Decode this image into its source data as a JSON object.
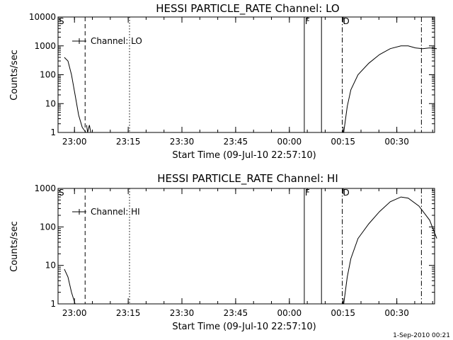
{
  "footer": {
    "timestamp": "1-Sep-2010 00:21"
  },
  "chart_data": [
    {
      "type": "line",
      "title": "HESSI PARTICLE_RATE Channel: LO",
      "xlabel": "Start Time (09-Jul-10 22:57:10)",
      "ylabel": "Counts/sec",
      "legend": "Channel: LO",
      "scale_y": "log",
      "ylim": [
        1,
        10000
      ],
      "y_ticks": [
        "1",
        "10",
        "100",
        "1000",
        "10000"
      ],
      "x_ticks": [
        "23:00",
        "23:15",
        "23:30",
        "23:45",
        "00:00",
        "00:15",
        "00:30"
      ],
      "markers": [
        {
          "label": "",
          "style": "dashed"
        },
        {
          "label": "",
          "style": "dotted"
        },
        {
          "label": "F",
          "style": "solid"
        },
        {
          "label": "",
          "style": "solid"
        },
        {
          "label": "D",
          "style": "dashdot"
        },
        {
          "label": "",
          "style": "dashdot"
        }
      ],
      "series_segments": [
        [
          [
            0,
            400
          ],
          [
            1,
            300
          ],
          [
            2,
            100
          ],
          [
            3,
            20
          ],
          [
            4,
            4
          ],
          [
            5,
            1.5
          ],
          [
            6,
            1
          ]
        ],
        [
          [
            6.2,
            1.8
          ],
          [
            6.5,
            1
          ],
          [
            7,
            1.8
          ],
          [
            7.4,
            1
          ]
        ],
        [
          [
            78,
            1
          ],
          [
            79,
            8
          ],
          [
            80,
            30
          ],
          [
            82,
            100
          ],
          [
            85,
            250
          ],
          [
            88,
            500
          ],
          [
            91,
            800
          ],
          [
            94,
            1000
          ],
          [
            96,
            1000
          ],
          [
            98,
            850
          ],
          [
            100,
            800
          ],
          [
            102,
            850
          ],
          [
            104,
            800
          ]
        ]
      ]
    },
    {
      "type": "line",
      "title": "HESSI PARTICLE_RATE Channel: HI",
      "xlabel": "Start Time (09-Jul-10 22:57:10)",
      "ylabel": "Counts/sec",
      "legend": "Channel: HI",
      "scale_y": "log",
      "ylim": [
        1,
        1000
      ],
      "y_ticks": [
        "1",
        "10",
        "100",
        "1000"
      ],
      "x_ticks": [
        "23:00",
        "23:15",
        "23:30",
        "23:45",
        "00:00",
        "00:15",
        "00:30"
      ],
      "markers": [
        {
          "label": "",
          "style": "dashed"
        },
        {
          "label": "",
          "style": "dotted"
        },
        {
          "label": "F",
          "style": "solid"
        },
        {
          "label": "",
          "style": "solid"
        },
        {
          "label": "D",
          "style": "dashdot"
        },
        {
          "label": "",
          "style": "dashdot"
        }
      ],
      "series_segments": [
        [
          [
            0,
            8
          ],
          [
            1,
            5
          ],
          [
            2,
            2
          ],
          [
            3,
            1
          ]
        ],
        [
          [
            78,
            1
          ],
          [
            79,
            5
          ],
          [
            80,
            15
          ],
          [
            82,
            50
          ],
          [
            85,
            120
          ],
          [
            88,
            250
          ],
          [
            91,
            450
          ],
          [
            94,
            600
          ],
          [
            96,
            560
          ],
          [
            99,
            350
          ],
          [
            102,
            150
          ],
          [
            104,
            50
          ]
        ]
      ]
    }
  ]
}
